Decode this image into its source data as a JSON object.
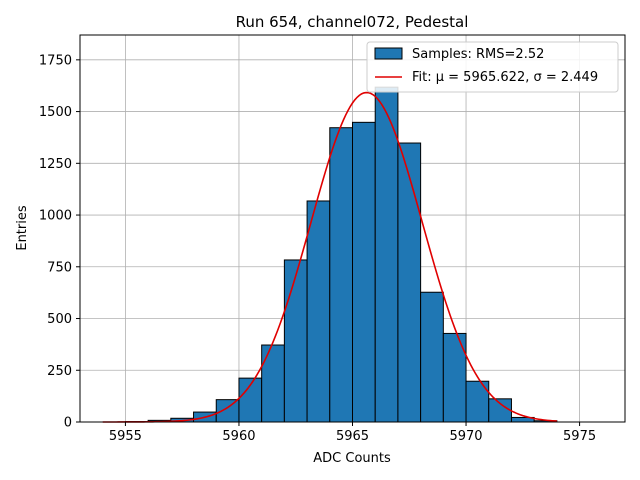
{
  "chart_data": {
    "type": "bar",
    "title": "Run 654, channel072, Pedestal",
    "xlabel": "ADC Counts",
    "ylabel": "Entries",
    "xlim": [
      5953.0,
      5977.0
    ],
    "ylim": [
      0,
      1870
    ],
    "xticks": [
      5955,
      5960,
      5965,
      5970,
      5975
    ],
    "yticks": [
      0,
      250,
      500,
      750,
      1000,
      1250,
      1500,
      1750
    ],
    "grid": true,
    "bar_color": "#1f77b4",
    "fit_color": "#e00000",
    "bins": [
      {
        "left": 5954,
        "right": 5955,
        "value": 0
      },
      {
        "left": 5955,
        "right": 5956,
        "value": 2
      },
      {
        "left": 5956,
        "right": 5957,
        "value": 8
      },
      {
        "left": 5957,
        "right": 5958,
        "value": 18
      },
      {
        "left": 5958,
        "right": 5959,
        "value": 48
      },
      {
        "left": 5959,
        "right": 5960,
        "value": 108
      },
      {
        "left": 5960,
        "right": 5961,
        "value": 212
      },
      {
        "left": 5961,
        "right": 5962,
        "value": 372
      },
      {
        "left": 5962,
        "right": 5963,
        "value": 783
      },
      {
        "left": 5963,
        "right": 5964,
        "value": 1068
      },
      {
        "left": 5964,
        "right": 5965,
        "value": 1422
      },
      {
        "left": 5965,
        "right": 5966,
        "value": 1448
      },
      {
        "left": 5966,
        "right": 5967,
        "value": 1618
      },
      {
        "left": 5967,
        "right": 5968,
        "value": 1348
      },
      {
        "left": 5968,
        "right": 5969,
        "value": 627
      },
      {
        "left": 5969,
        "right": 5970,
        "value": 428
      },
      {
        "left": 5970,
        "right": 5971,
        "value": 197
      },
      {
        "left": 5971,
        "right": 5972,
        "value": 112
      },
      {
        "left": 5972,
        "right": 5973,
        "value": 22
      },
      {
        "left": 5973,
        "right": 5974,
        "value": 6
      }
    ],
    "fit": {
      "mu": 5965.622,
      "sigma": 2.449,
      "peak": 1592,
      "x_range": [
        5954,
        5974
      ]
    },
    "legend": {
      "location": "top-right",
      "entries": [
        {
          "kind": "patch",
          "label": "Samples: RMS=2.52"
        },
        {
          "kind": "line",
          "label": "Fit: μ = 5965.622, σ = 2.449"
        }
      ]
    }
  }
}
